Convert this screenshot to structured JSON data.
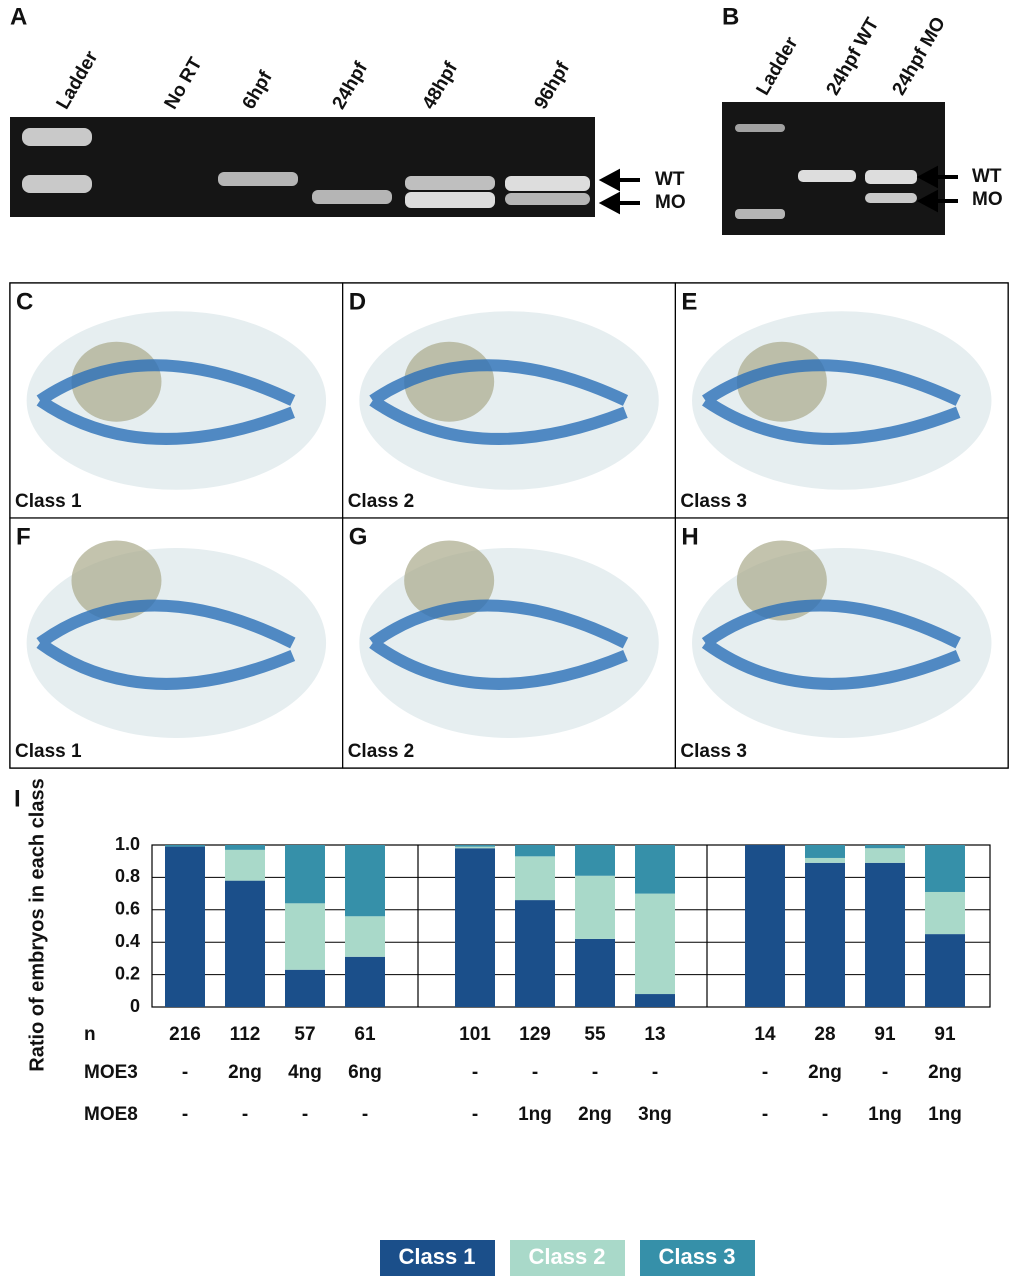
{
  "panels": {
    "a": {
      "letter": "A",
      "lanes": [
        "Ladder",
        "No RT",
        "6hpf",
        "24hpf",
        "48hpf",
        "96hpf"
      ],
      "arrows": [
        "WT",
        "MO"
      ]
    },
    "b": {
      "letter": "B",
      "lanes": [
        "Ladder",
        "24hpf WT",
        "24hpf MO"
      ],
      "arrows": [
        "WT",
        "MO"
      ]
    },
    "images": [
      {
        "letter": "C",
        "label": "Class 1"
      },
      {
        "letter": "D",
        "label": "Class 2"
      },
      {
        "letter": "E",
        "label": "Class 3"
      },
      {
        "letter": "F",
        "label": "Class 1"
      },
      {
        "letter": "G",
        "label": "Class 2"
      },
      {
        "letter": "H",
        "label": "Class 3"
      }
    ]
  },
  "chart_data": {
    "type": "stacked_bar",
    "panel_letter": "I",
    "y_label": "Ratio of embryos in each class",
    "categories": [
      null,
      null,
      null,
      null,
      null,
      null,
      null,
      null,
      null,
      null,
      null,
      null
    ],
    "ylim": [
      0,
      1
    ],
    "yticks": [
      0,
      0.2,
      0.4,
      0.6,
      0.8,
      {
        "value": 1,
        "label": "1.0"
      }
    ],
    "grid": true,
    "series": [
      {
        "name": "Class 1",
        "color": "#1b4f8a",
        "values": [
          0.99,
          0.78,
          0.23,
          0.31,
          0.98,
          0.66,
          0.42,
          0.08,
          1.0,
          0.89,
          0.89,
          0.45
        ]
      },
      {
        "name": "Class 2",
        "color": "#a9d9c9",
        "values": [
          0.0,
          0.19,
          0.41,
          0.25,
          0.01,
          0.27,
          0.39,
          0.62,
          0.0,
          0.03,
          0.09,
          0.26
        ]
      },
      {
        "name": "Class 3",
        "color": "#3690a9",
        "values": [
          0.01,
          0.03,
          0.36,
          0.44,
          0.01,
          0.07,
          0.19,
          0.3,
          0.0,
          0.08,
          0.02,
          0.29
        ]
      }
    ],
    "sample_rows": [
      {
        "label": "n",
        "values": [
          "216",
          "112",
          "57",
          "61",
          "101",
          "129",
          "55",
          "13",
          "14",
          "28",
          "91",
          "91"
        ]
      },
      {
        "label": "MOE3",
        "values": [
          "-",
          "2ng",
          "4ng",
          "6ng",
          "-",
          "-",
          "-",
          "-",
          "-",
          "2ng",
          "-",
          "2ng"
        ]
      },
      {
        "label": "MOE8",
        "values": [
          "-",
          "-",
          "-",
          "-",
          "-",
          "1ng",
          "2ng",
          "3ng",
          "-",
          "-",
          "1ng",
          "1ng"
        ]
      }
    ]
  }
}
